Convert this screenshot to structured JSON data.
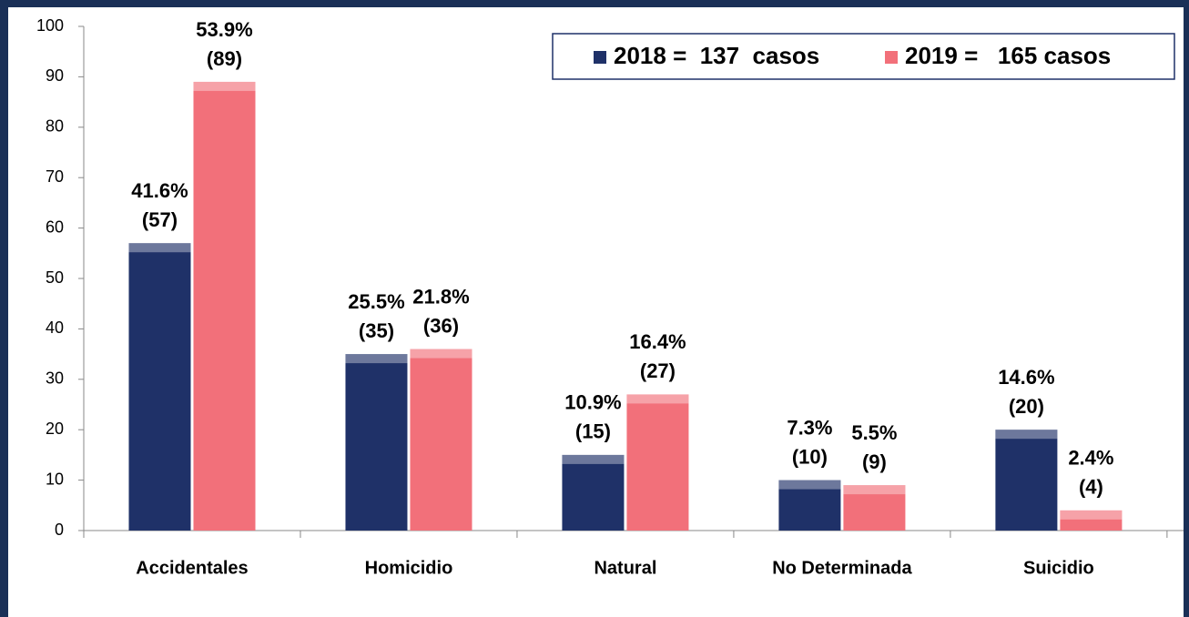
{
  "chart_data": {
    "type": "bar",
    "categories": [
      "Accidentales",
      "Homicidio",
      "Natural",
      "No Determinada",
      "Suicidio"
    ],
    "series": [
      {
        "name": "2018 =  137  casos",
        "color": "#1f3168",
        "values": [
          57,
          35,
          15,
          10,
          20
        ],
        "percent_labels": [
          "41.6%",
          "25.5%",
          "10.9%",
          "7.3%",
          "14.6%"
        ],
        "value_labels": [
          "(57)",
          "(35)",
          "(15)",
          "(10)",
          "(20)"
        ]
      },
      {
        "name": "2019 =   165 casos",
        "color": "#f2707a",
        "values": [
          89,
          36,
          27,
          9,
          4
        ],
        "percent_labels": [
          "53.9%",
          "21.8%",
          "16.4%",
          "5.5%",
          "2.4%"
        ],
        "value_labels": [
          "(89)",
          "(36)",
          "(27)",
          "(9)",
          "(4)"
        ]
      }
    ],
    "ylim": [
      0,
      100
    ],
    "yticks": [
      0,
      10,
      20,
      30,
      40,
      50,
      60,
      70,
      80,
      90,
      100
    ],
    "grid": false
  }
}
